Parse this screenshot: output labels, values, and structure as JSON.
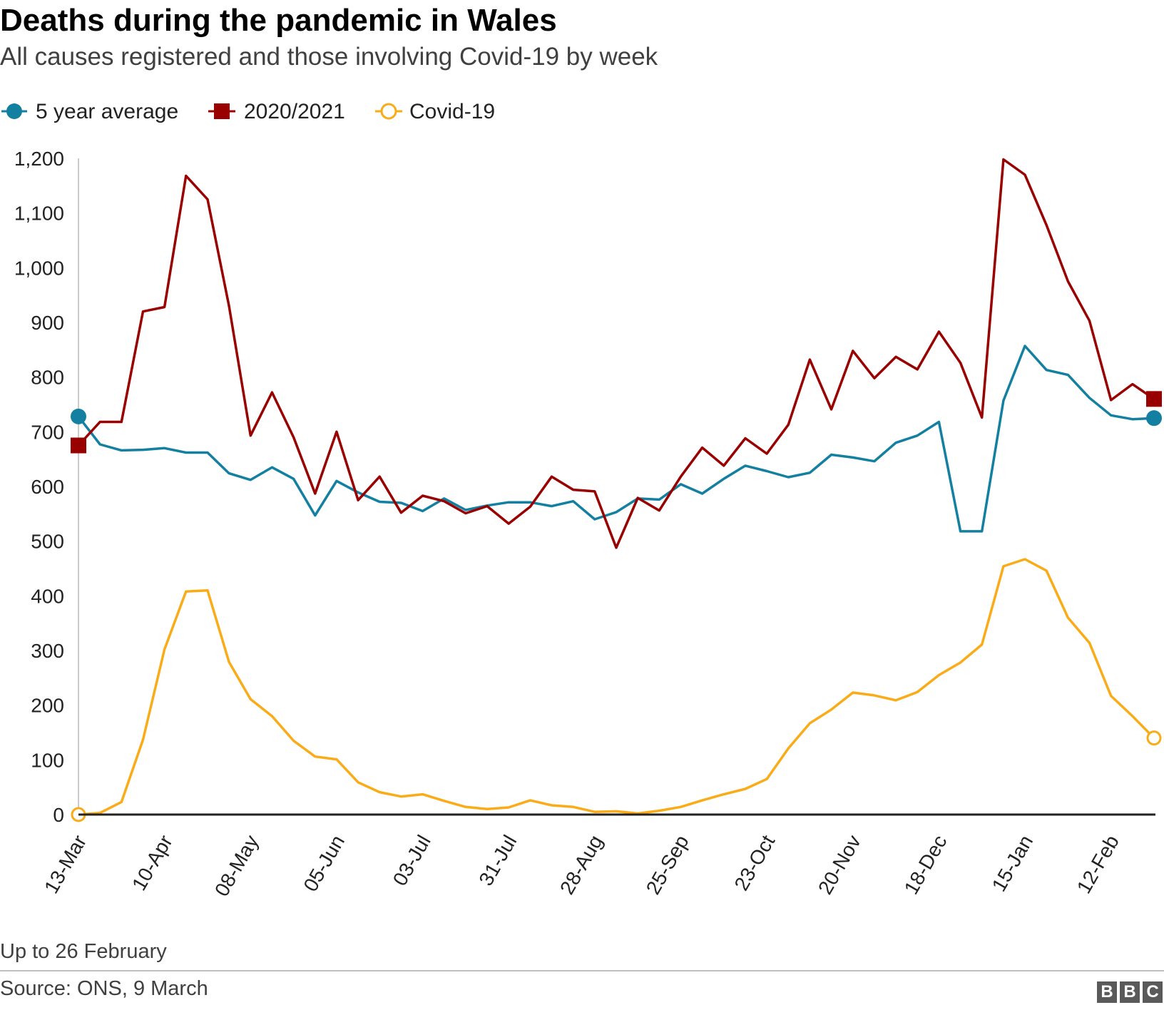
{
  "title": "Deaths during the pandemic in Wales",
  "subtitle": "All causes registered and those involving Covid-19 by week",
  "note": "Up to 26 February",
  "source": "Source: ONS, 9 March",
  "logo": "BBC",
  "colors": {
    "average": "#1380A1",
    "current": "#990000",
    "covid": "#FAAB18",
    "axis": "#222222",
    "grid": "#cbcbcb"
  },
  "chart_data": {
    "type": "line",
    "title": "Deaths during the pandemic in Wales",
    "subtitle": "All causes registered and those involving Covid-19 by week",
    "xlabel": "",
    "ylabel": "",
    "ylim": [
      0,
      1200
    ],
    "yticks": [
      0,
      100,
      200,
      300,
      400,
      500,
      600,
      700,
      800,
      900,
      1000,
      1100,
      1200
    ],
    "ytick_labels": [
      "0",
      "100",
      "200",
      "300",
      "400",
      "500",
      "600",
      "700",
      "800",
      "900",
      "1,000",
      "1,100",
      "1,200"
    ],
    "xtick_labels": [
      "13-Mar",
      "10-Apr",
      "08-May",
      "05-Jun",
      "03-Jul",
      "31-Jul",
      "28-Aug",
      "25-Sep",
      "23-Oct",
      "20-Nov",
      "18-Dec",
      "15-Jan",
      "12-Feb"
    ],
    "xtick_every": 4,
    "legend_position": "top-left",
    "grid": false,
    "series": [
      {
        "name": "5 year average",
        "key": "average",
        "marker": "filled-circle",
        "values": [
          728,
          677,
          666,
          667,
          670,
          662,
          662,
          624,
          612,
          635,
          614,
          547,
          610,
          589,
          572,
          570,
          555,
          578,
          557,
          565,
          571,
          571,
          564,
          573,
          540,
          553,
          578,
          576,
          604,
          587,
          614,
          638,
          628,
          617,
          625,
          658,
          653,
          646,
          680,
          693,
          718,
          518,
          518,
          757,
          857,
          813,
          804,
          762,
          730,
          723,
          725
        ]
      },
      {
        "name": "2020/2021",
        "key": "current",
        "marker": "filled-square",
        "values": [
          675,
          718,
          718,
          920,
          928,
          1168,
          1125,
          930,
          693,
          772,
          690,
          587,
          700,
          575,
          618,
          552,
          583,
          573,
          551,
          564,
          532,
          563,
          618,
          594,
          591,
          488,
          579,
          556,
          618,
          671,
          638,
          688,
          660,
          713,
          832,
          741,
          848,
          798,
          837,
          814,
          883,
          826,
          726,
          1198,
          1170,
          1078,
          975,
          903,
          758,
          787,
          760
        ]
      },
      {
        "name": "Covid-19",
        "key": "covid",
        "marker": "open-circle",
        "values": [
          0,
          3,
          23,
          137,
          302,
          408,
          410,
          279,
          211,
          180,
          135,
          106,
          101,
          59,
          41,
          33,
          37,
          25,
          14,
          10,
          13,
          26,
          17,
          14,
          5,
          6,
          2,
          7,
          14,
          26,
          37,
          47,
          65,
          121,
          167,
          192,
          223,
          218,
          209,
          224,
          255,
          278,
          311,
          454,
          467,
          446,
          360,
          314,
          217,
          180,
          140
        ]
      }
    ]
  }
}
